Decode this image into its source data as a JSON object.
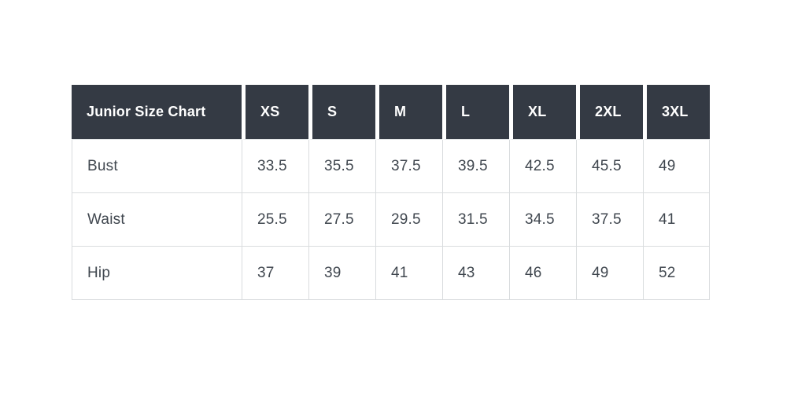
{
  "colors": {
    "page_background": "#ffffff",
    "header_background": "#343a44",
    "header_text": "#ffffff",
    "body_text": "#40474f",
    "border": "#d9dcde"
  },
  "chart_data": {
    "type": "table",
    "title": "Junior Size Chart",
    "header": [
      "Junior Size Chart",
      "XS",
      "S",
      "M",
      "L",
      "XL",
      "2XL",
      "3XL"
    ],
    "rows": [
      {
        "label": "Bust",
        "values": [
          "33.5",
          "35.5",
          "37.5",
          "39.5",
          "42.5",
          "45.5",
          "49"
        ]
      },
      {
        "label": "Waist",
        "values": [
          "25.5",
          "27.5",
          "29.5",
          "31.5",
          "34.5",
          "37.5",
          "41"
        ]
      },
      {
        "label": "Hip",
        "values": [
          "37",
          "39",
          "41",
          "43",
          "46",
          "49",
          "52"
        ]
      }
    ]
  }
}
